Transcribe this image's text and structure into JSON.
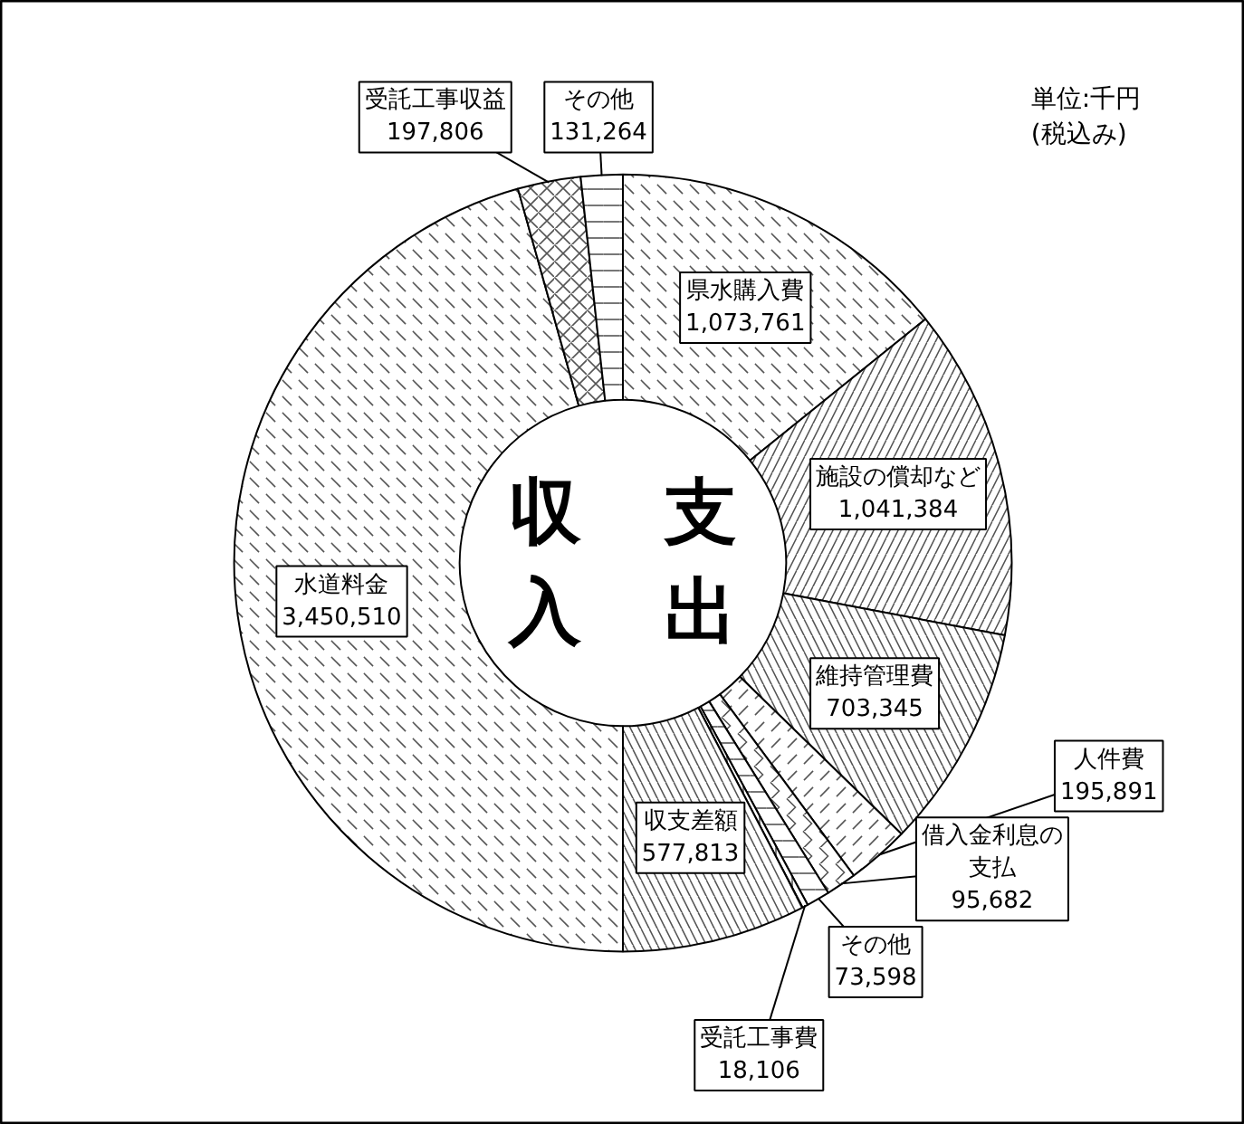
{
  "chart_data": {
    "type": "donut",
    "categories": [
      "県水購入費",
      "施設の償却など",
      "維持管理費",
      "人件費",
      "借入金利息の支払",
      "その他",
      "受託工事費",
      "収支差額",
      "水道料金",
      "受託工事収益",
      "その他"
    ],
    "values": [
      1073761,
      1041384,
      703345,
      195891,
      95682,
      73598,
      18106,
      577813,
      3450510,
      197806,
      131264
    ],
    "colors": [
      "#ffffff",
      "#ffffff",
      "#ffffff",
      "#ffffff",
      "#ffffff",
      "#ffffff",
      "#ffffff",
      "#ffffff",
      "#ffffff",
      "#ffffff",
      "#ffffff"
    ],
    "value_labels": [
      "1,073,761",
      "1,041,384",
      "703,345",
      "195,891",
      "95,682",
      "73,598",
      "18,106",
      "577,813",
      "3,450,510",
      "197,806",
      "131,264"
    ],
    "annotations": [
      "収入",
      "支出",
      "単位:千円\n(税込み)"
    ]
  }
}
